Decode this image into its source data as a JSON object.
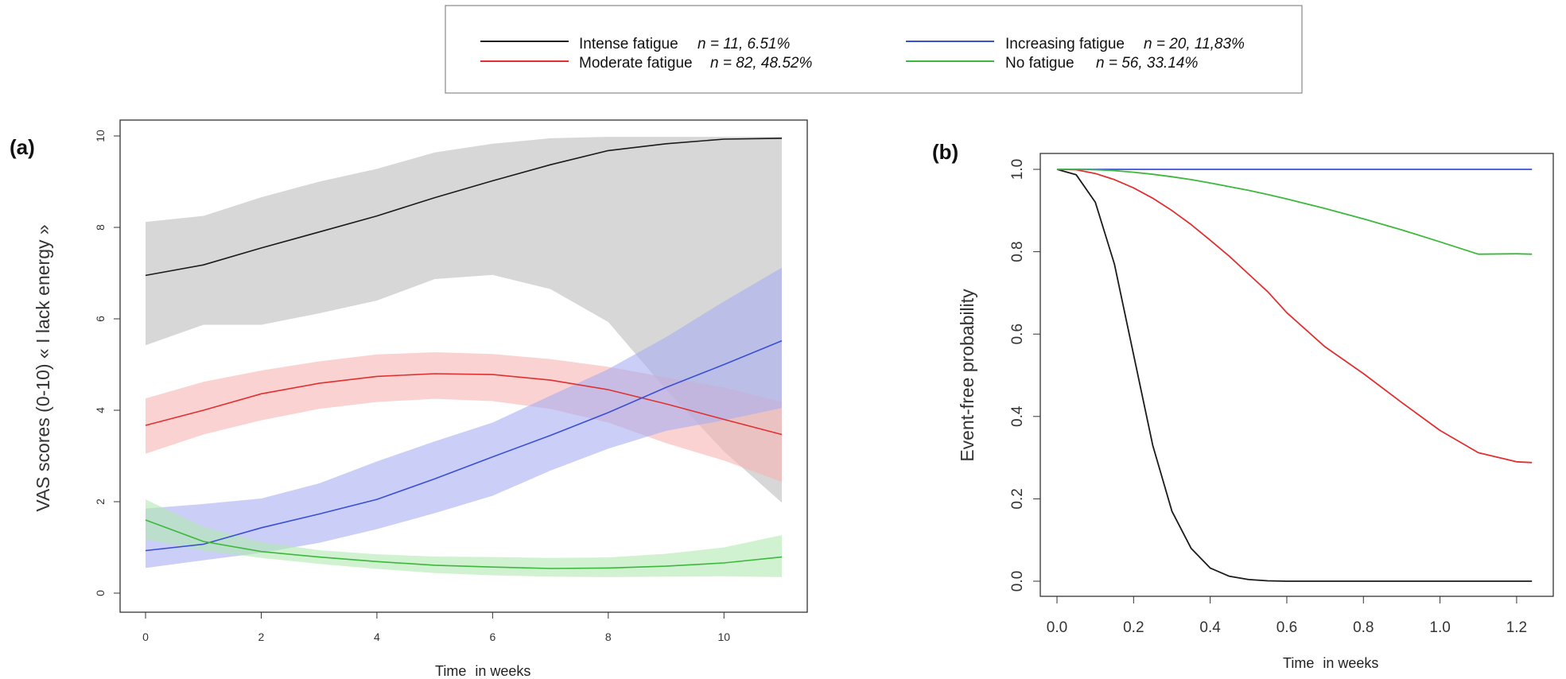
{
  "legend": {
    "items": [
      {
        "label": "Intense fatigue",
        "stat": "n = 11, 6.51%",
        "color": "#1a1a1a"
      },
      {
        "label": "Moderate fatigue",
        "stat": "n = 82, 48.52%",
        "color": "#e03030"
      },
      {
        "label": "Increasing fatigue",
        "stat": "n = 20, 11,83%",
        "color": "#3a4fd8"
      },
      {
        "label": "No fatigue",
        "stat": "n = 56, 33.14%",
        "color": "#3cb83c"
      }
    ]
  },
  "panels": {
    "a": {
      "tag": "(a)"
    },
    "b": {
      "tag": "(b)"
    }
  },
  "chart_data": [
    {
      "type": "line",
      "panel": "(a)",
      "xlabel_main": "Time",
      "xlabel_unit": "in weeks",
      "ylabel": "VAS scores (0-10) « I lack energy »",
      "xlim": [
        0,
        11
      ],
      "ylim": [
        0,
        10
      ],
      "xticks": [
        0,
        2,
        4,
        6,
        8,
        10
      ],
      "yticks": [
        0,
        2,
        4,
        6,
        8,
        10
      ],
      "x": [
        0,
        1,
        2,
        3,
        4,
        5,
        6,
        7,
        8,
        9,
        10,
        11
      ],
      "series": [
        {
          "name": "Intense fatigue",
          "color": "#1a1a1a",
          "band_color": "#bdbdbd",
          "values": [
            6.95,
            7.18,
            7.55,
            7.9,
            8.25,
            8.65,
            9.02,
            9.37,
            9.68,
            9.83,
            9.93,
            9.95
          ],
          "lower": [
            5.42,
            5.87,
            5.87,
            6.12,
            6.4,
            6.87,
            6.96,
            6.65,
            5.93,
            4.45,
            3.1,
            1.98
          ],
          "upper": [
            8.12,
            8.25,
            8.66,
            9.0,
            9.28,
            9.64,
            9.83,
            9.95,
            9.98,
            9.98,
            9.98,
            9.98
          ]
        },
        {
          "name": "Moderate fatigue",
          "color": "#e03030",
          "band_color": "#f8b4b4",
          "values": [
            3.67,
            4.0,
            4.36,
            4.59,
            4.74,
            4.8,
            4.78,
            4.66,
            4.45,
            4.14,
            3.8,
            3.47
          ],
          "lower": [
            3.05,
            3.47,
            3.78,
            4.03,
            4.18,
            4.25,
            4.2,
            4.03,
            3.73,
            3.28,
            2.9,
            2.43
          ],
          "upper": [
            4.26,
            4.62,
            4.87,
            5.07,
            5.22,
            5.27,
            5.23,
            5.12,
            4.95,
            4.72,
            4.5,
            4.18
          ]
        },
        {
          "name": "Increasing fatigue",
          "color": "#3a4fd8",
          "band_color": "#a8adf0",
          "values": [
            0.93,
            1.07,
            1.43,
            1.73,
            2.05,
            2.5,
            2.98,
            3.45,
            3.95,
            4.5,
            5.0,
            5.52
          ],
          "lower": [
            0.55,
            0.72,
            0.88,
            1.1,
            1.4,
            1.75,
            2.13,
            2.68,
            3.16,
            3.55,
            3.78,
            4.05
          ],
          "upper": [
            1.85,
            1.95,
            2.07,
            2.4,
            2.88,
            3.32,
            3.73,
            4.32,
            4.9,
            5.6,
            6.38,
            7.12
          ]
        },
        {
          "name": "No fatigue",
          "color": "#3cb83c",
          "band_color": "#b2eab2",
          "values": [
            1.6,
            1.13,
            0.91,
            0.79,
            0.69,
            0.61,
            0.57,
            0.54,
            0.55,
            0.59,
            0.66,
            0.79
          ],
          "lower": [
            1.18,
            0.93,
            0.77,
            0.64,
            0.53,
            0.44,
            0.39,
            0.36,
            0.35,
            0.36,
            0.37,
            0.35
          ],
          "upper": [
            2.05,
            1.45,
            1.12,
            0.94,
            0.85,
            0.8,
            0.79,
            0.77,
            0.78,
            0.86,
            1.0,
            1.27
          ]
        }
      ]
    },
    {
      "type": "line",
      "panel": "(b)",
      "xlabel_main": "Time",
      "xlabel_unit": "in weeks",
      "ylabel": "Event-free probability",
      "xlim": [
        0,
        1.25
      ],
      "ylim": [
        0,
        1
      ],
      "xticks": [
        0.0,
        0.2,
        0.4,
        0.6,
        0.8,
        1.0,
        1.2
      ],
      "yticks": [
        0.0,
        0.2,
        0.4,
        0.6,
        0.8,
        1.0
      ],
      "x": [
        0.0,
        0.05,
        0.1,
        0.15,
        0.2,
        0.25,
        0.3,
        0.35,
        0.4,
        0.45,
        0.5,
        0.55,
        0.6,
        0.7,
        0.8,
        0.9,
        1.0,
        1.1,
        1.2,
        1.24
      ],
      "series": [
        {
          "name": "Intense fatigue",
          "color": "#1a1a1a",
          "values": [
            1.0,
            0.987,
            0.92,
            0.77,
            0.55,
            0.33,
            0.17,
            0.08,
            0.032,
            0.012,
            0.004,
            0.001,
            0.0,
            0.0,
            0.0,
            0.0,
            0.0,
            0.0,
            0.0,
            0.0
          ]
        },
        {
          "name": "Moderate fatigue",
          "color": "#e03030",
          "values": [
            1.0,
            0.999,
            0.99,
            0.975,
            0.955,
            0.93,
            0.9,
            0.866,
            0.828,
            0.789,
            0.746,
            0.703,
            0.652,
            0.569,
            0.504,
            0.434,
            0.366,
            0.312,
            0.29,
            0.288
          ]
        },
        {
          "name": "Increasing fatigue",
          "color": "#3a4fd8",
          "values": [
            1.0,
            1.0,
            1.0,
            1.0,
            1.0,
            1.0,
            1.0,
            1.0,
            1.0,
            1.0,
            1.0,
            1.0,
            1.0,
            1.0,
            1.0,
            1.0,
            1.0,
            1.0,
            1.0,
            1.0
          ]
        },
        {
          "name": "No fatigue",
          "color": "#3cb83c",
          "values": [
            1.0,
            1.0,
            0.999,
            0.997,
            0.993,
            0.988,
            0.982,
            0.975,
            0.967,
            0.958,
            0.949,
            0.939,
            0.928,
            0.905,
            0.88,
            0.853,
            0.824,
            0.794,
            0.795,
            0.794
          ]
        }
      ]
    }
  ]
}
